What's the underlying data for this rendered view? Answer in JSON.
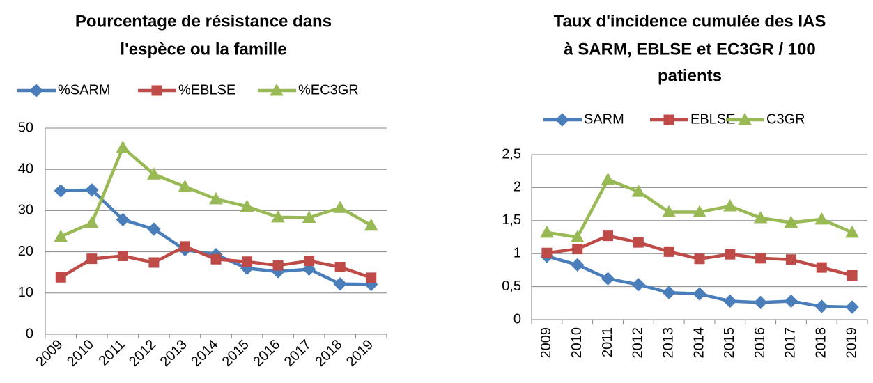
{
  "chart_data": [
    {
      "type": "line",
      "title": [
        "Pourcentage de résistance dans",
        "l'espèce ou la famille"
      ],
      "categories": [
        "2009",
        "2010",
        "2011",
        "2012",
        "2013",
        "2014",
        "2015",
        "2016",
        "2017",
        "2018",
        "2019"
      ],
      "series": [
        {
          "name": "%SARM",
          "color": "#4a7ebb",
          "values": [
            34.8,
            35,
            27.8,
            25.5,
            20.5,
            19.3,
            16,
            15.2,
            15.8,
            12.2,
            12.1
          ]
        },
        {
          "name": "%EBLSE",
          "color": "#be4b48",
          "values": [
            13.8,
            18.3,
            19,
            17.4,
            21.3,
            18.2,
            17.6,
            16.7,
            17.8,
            16.3,
            13.7
          ]
        },
        {
          "name": "%EC3GR",
          "color": "#98b954",
          "values": [
            23.7,
            27,
            45.3,
            38.8,
            35.8,
            32.8,
            31,
            28.4,
            28.3,
            30.7,
            26.4
          ]
        }
      ],
      "ylim": [
        0,
        50
      ],
      "yticks": [
        0,
        10,
        20,
        30,
        40,
        50
      ],
      "grid": true,
      "legend": "top"
    },
    {
      "type": "line",
      "title": [
        "Taux d'incidence cumulée des IAS",
        "à SARM, EBLSE et EC3GR / 100",
        "patients"
      ],
      "categories": [
        "2009",
        "2010",
        "2011",
        "2012",
        "2013",
        "2014",
        "2015",
        "2016",
        "2017",
        "2018",
        "2019"
      ],
      "series": [
        {
          "name": "SARM",
          "color": "#4a7ebb",
          "values": [
            0.96,
            0.83,
            0.62,
            0.53,
            0.41,
            0.39,
            0.28,
            0.26,
            0.28,
            0.2,
            0.19
          ]
        },
        {
          "name": "EBLSE",
          "color": "#be4b48",
          "values": [
            1.01,
            1.07,
            1.27,
            1.17,
            1.03,
            0.92,
            0.99,
            0.93,
            0.91,
            0.79,
            0.67
          ]
        },
        {
          "name": "C3GR",
          "color": "#98b954",
          "values": [
            1.32,
            1.25,
            2.12,
            1.94,
            1.63,
            1.63,
            1.72,
            1.54,
            1.47,
            1.52,
            1.32
          ]
        }
      ],
      "ylim": [
        0,
        2.5
      ],
      "yticks": [
        0,
        {
          "value": 0.5,
          "label": "0,5"
        },
        1,
        {
          "value": 1.5,
          "label": "1,5"
        },
        2,
        {
          "value": 2.5,
          "label": "2,5"
        }
      ],
      "grid": true,
      "legend": "top"
    }
  ]
}
